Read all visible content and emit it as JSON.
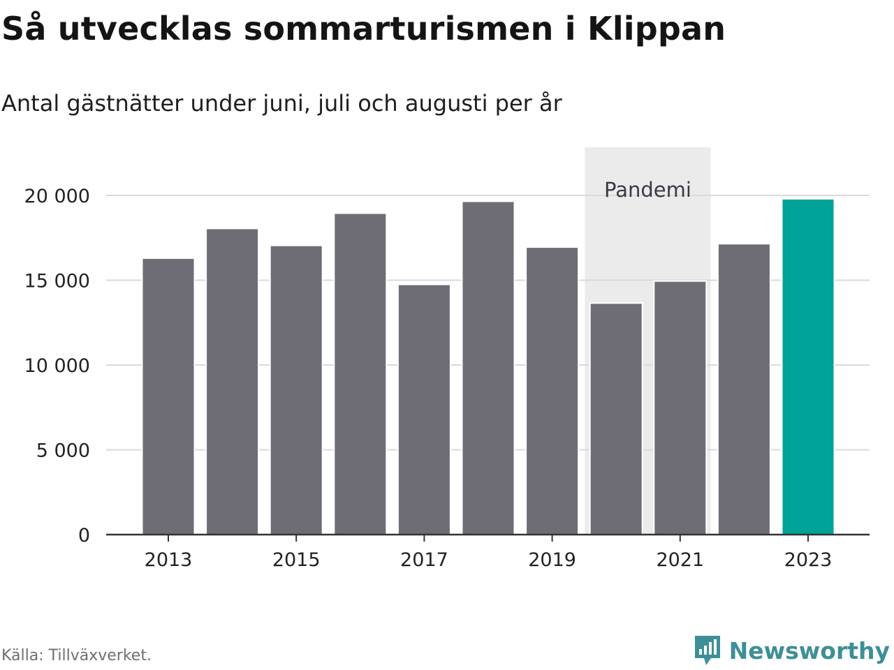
{
  "header": {
    "title": "Så utvecklas sommarturismen i Klippan",
    "subtitle": "Antal gästnätter under juni, juli och augusti per år"
  },
  "footer": {
    "source": "Källa: Tillväxverket.",
    "brand": "Newsworthy",
    "brand_icon": "newsworthy-logo-icon"
  },
  "colors": {
    "bar": "#6e6d76",
    "highlight": "#00a397",
    "shade": "#ebebeb",
    "grid": "#dadada",
    "brand": "#3e8f97"
  },
  "chart_data": {
    "type": "bar",
    "categories": [
      "2013",
      "2014",
      "2015",
      "2016",
      "2017",
      "2018",
      "2019",
      "2020",
      "2021",
      "2022",
      "2023"
    ],
    "values": [
      16300,
      18050,
      17050,
      18950,
      14750,
      19650,
      16950,
      13650,
      14950,
      17150,
      19800
    ],
    "highlight_category": "2023",
    "x_tick_labels": [
      "2013",
      "2015",
      "2017",
      "2019",
      "2021",
      "2023"
    ],
    "y_ticks": [
      0,
      5000,
      10000,
      15000,
      20000
    ],
    "y_tick_labels": [
      "0",
      "5 000",
      "10 000",
      "15 000",
      "20 000"
    ],
    "ylim": [
      0,
      22500
    ],
    "grid": true,
    "xlabel": "",
    "ylabel": "",
    "annotations": [
      {
        "label": "Pandemi",
        "from": "2020",
        "to": "2021"
      }
    ]
  }
}
